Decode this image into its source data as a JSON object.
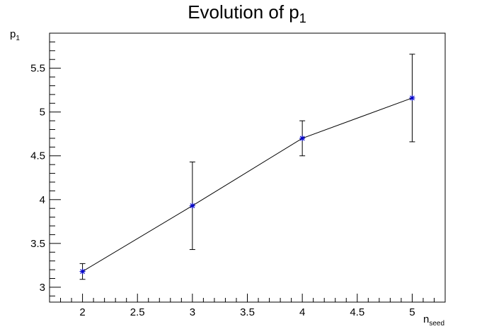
{
  "chart_data": {
    "type": "line",
    "title_main": "Evolution of p",
    "title_sub": "1",
    "ylabel_main": "p",
    "ylabel_sub": "1",
    "xlabel_main": "n",
    "xlabel_sub": "seed",
    "xlim": [
      1.7,
      5.3
    ],
    "ylim": [
      2.83,
      5.9
    ],
    "x_ticks": [
      2,
      2.5,
      3,
      3.5,
      4,
      4.5,
      5
    ],
    "x_tick_labels": [
      "2",
      "2.5",
      "3",
      "3.5",
      "4",
      "4.5",
      "5"
    ],
    "y_ticks": [
      3,
      3.5,
      4,
      4.5,
      5,
      5.5
    ],
    "y_tick_labels": [
      "3",
      "3.5",
      "4",
      "4.5",
      "5",
      "5.5"
    ],
    "grid": false,
    "series": [
      {
        "x": [
          2,
          3,
          4,
          5
        ],
        "y": [
          3.18,
          3.93,
          4.7,
          5.16
        ],
        "yerr": [
          0.09,
          0.5,
          0.2,
          0.5
        ],
        "line_color": "#000000",
        "marker": "asterisk",
        "marker_color": "#0000cc"
      }
    ]
  }
}
